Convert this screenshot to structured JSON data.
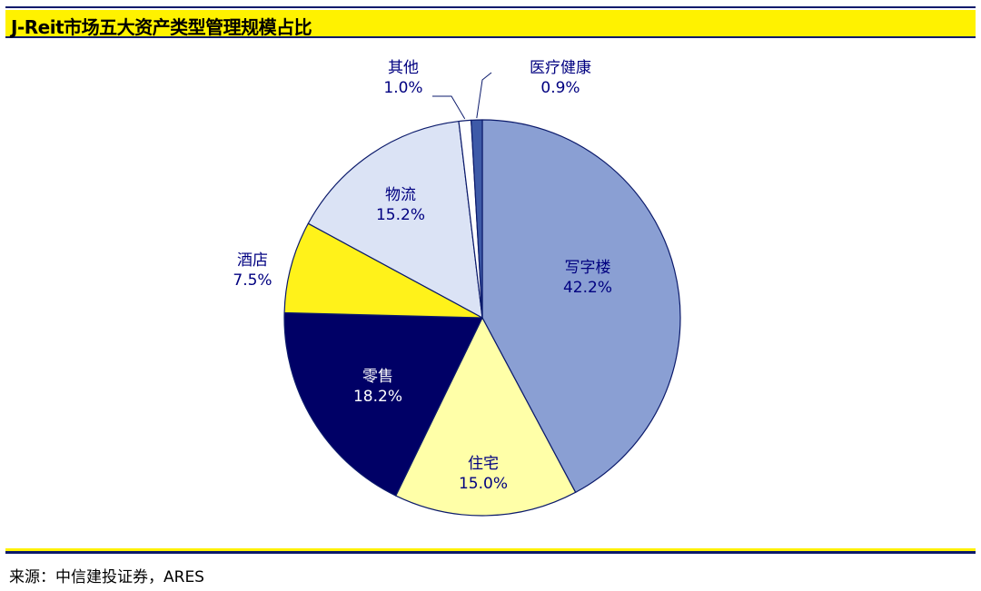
{
  "header": {
    "title": "J-Reit市场五大资产类型管理规模占比"
  },
  "footer": {
    "source": "来源：中信建投证券，ARES"
  },
  "chart_data": {
    "type": "pie",
    "title": "J-Reit市场五大资产类型管理规模占比",
    "unit": "%",
    "start_angle_deg": 0,
    "direction": "clockwise",
    "slices": [
      {
        "label": "写字楼",
        "value": 42.2,
        "value_label": "42.2%",
        "color": "#8a9fd3",
        "label_color": "#000080"
      },
      {
        "label": "住宅",
        "value": 15.0,
        "value_label": "15.0%",
        "color": "#ffffa8",
        "label_color": "#000080"
      },
      {
        "label": "零售",
        "value": 18.2,
        "value_label": "18.2%",
        "color": "#000066",
        "label_color": "#ffffff"
      },
      {
        "label": "酒店",
        "value": 7.5,
        "value_label": "7.5%",
        "color": "#fff21a",
        "label_color": "#000080"
      },
      {
        "label": "物流",
        "value": 15.2,
        "value_label": "15.2%",
        "color": "#dbe3f5",
        "label_color": "#000080"
      },
      {
        "label": "其他",
        "value": 1.0,
        "value_label": "1.0%",
        "color": "#ffffff",
        "label_color": "#000080"
      },
      {
        "label": "医疗健康",
        "value": 0.9,
        "value_label": "0.9%",
        "color": "#3e5aa8",
        "label_color": "#000080"
      }
    ],
    "legend": "none"
  }
}
